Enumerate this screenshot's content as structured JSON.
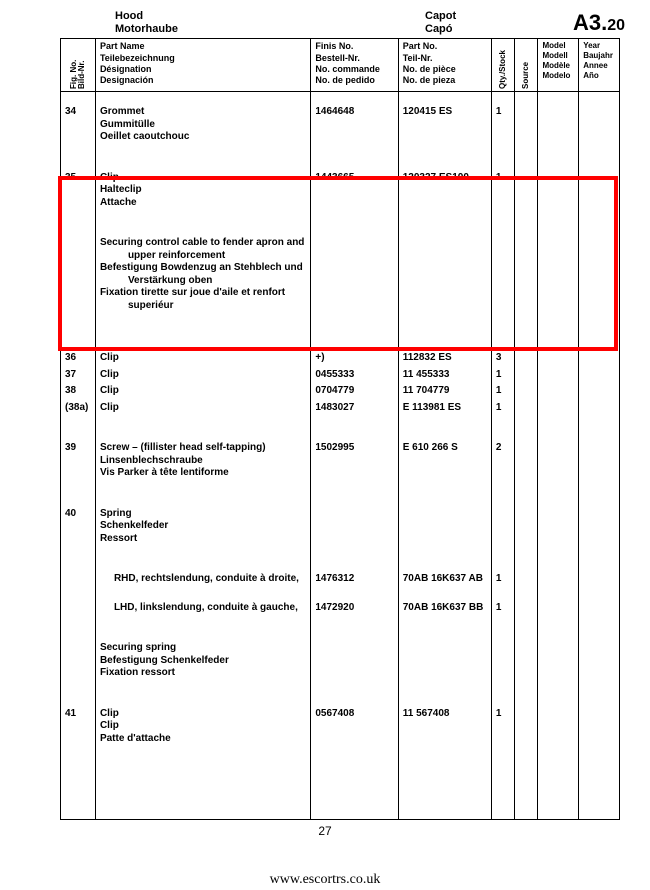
{
  "header": {
    "title_en": "Hood",
    "title_de": "Motorhaube",
    "title_fr": "Capot",
    "title_es": "Capó",
    "section": "A3.",
    "section_sub": "20"
  },
  "columns": {
    "fig": "Fig. No.\nBild-Nr.",
    "name": "Part Name\nTeilebezeichnung\nDésignation\nDesignación",
    "finis": "Finis No.\nBestell-Nr.\nNo. commande\nNo. de pedido",
    "partno": "Part No.\nTeil-Nr.\nNo. de pièce\nNo. de pieza",
    "qty": "Qty./Stock",
    "source": "Source",
    "model": "Model\nModell\nModèle\nModelo",
    "year": "Year\nBaujahr\nAnnee\nAño"
  },
  "rows": {
    "r34": {
      "fig": "34",
      "name": "Grommet\nGummitülle\nOeillet caoutchouc",
      "finis": "1464648",
      "partno": "120415 ES",
      "qty": "1"
    },
    "r35": {
      "fig": "35",
      "name": "Clip\nHalteclip\nAttache",
      "finis": "1443665",
      "partno": "120327 ES100",
      "qty": "1"
    },
    "r35b": {
      "l1": "Securing control cable to fender apron and",
      "l1b": "upper reinforcement",
      "l2": "Befestigung Bowdenzug an Stehblech und",
      "l2b": "Verstärkung oben",
      "l3": "Fixation tirette sur joue d'aile et renfort",
      "l3b": "superiéur"
    },
    "r36": {
      "fig": "36",
      "name": "Clip",
      "finis": "+)",
      "partno": "112832 ES",
      "qty": "3"
    },
    "r37": {
      "fig": "37",
      "name": "Clip",
      "finis": "0455333",
      "partno": "11 455333",
      "qty": "1"
    },
    "r38": {
      "fig": "38",
      "name": "Clip",
      "finis": "0704779",
      "partno": "11 704779",
      "qty": "1"
    },
    "r38a": {
      "fig": "(38a)",
      "name": "Clip",
      "finis": "1483027",
      "partno": "E 113981 ES",
      "qty": "1"
    },
    "r39": {
      "fig": "39",
      "name": "Screw – (fillister head self-tapping)\nLinsenblechschraube\nVis Parker à tête lentiforme",
      "finis": "1502995",
      "partno": "E 610 266 S",
      "qty": "2"
    },
    "r40": {
      "fig": "40",
      "name": "Spring\nSchenkelfeder\nRessort"
    },
    "r40a": {
      "name": "RHD, rechtslendung, conduite à droite,",
      "finis": "1476312",
      "partno": "70AB 16K637 AB",
      "qty": "1"
    },
    "r40b": {
      "name": "LHD, linkslendung, conduite à gauche,",
      "finis": "1472920",
      "partno": "70AB 16K637 BB",
      "qty": "1"
    },
    "r40c": {
      "name": "Securing spring\nBefestigung Schenkelfeder\nFixation ressort"
    },
    "r41": {
      "fig": "41",
      "name": "Clip\nClip\nPatte d'attache",
      "finis": "0567408",
      "partno": "11 567408",
      "qty": "1"
    }
  },
  "pagenum": "27",
  "footer_url": "www.escortrs.co.uk",
  "highlight": {
    "target_fig": "35",
    "color": "#ff0000"
  }
}
